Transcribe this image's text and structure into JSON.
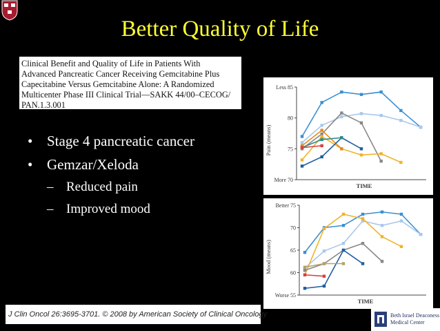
{
  "slide": {
    "title": "Better Quality of Life",
    "citation_lines": [
      "Clinical Benefit and Quality of Life in Patients With",
      "Advanced Pancreatic Cancer Receiving Gemcitabine Plus",
      "Capecitabine Versus Gemcitabine Alone: A Randomized",
      "Multicenter Phase III Clinical Trial—SAKK 44/00–CECOG/",
      "PAN.1.3.001"
    ],
    "bullets": [
      {
        "text": "Stage 4 pancreatic cancer",
        "level": 1
      },
      {
        "text": "Gemzar/Xeloda",
        "level": 1
      },
      {
        "text": "Reduced pain",
        "level": 2
      },
      {
        "text": "Improved mood",
        "level": 2
      }
    ],
    "footer_citation": "J Clin Oncol 26:3695-3701. © 2008 by American Society of Clinical Oncology",
    "logo_text": [
      "Beth Israel Deaconess",
      "Medical Center"
    ],
    "colors": {
      "background": "#000000",
      "title": "#ffff33",
      "text": "#ffffff"
    }
  },
  "chart_data": [
    {
      "type": "line",
      "ylabel": "Pain (means)",
      "xlabel": "TIME",
      "ylim": [
        70,
        85
      ],
      "y_ticks": [
        70,
        75,
        80,
        85
      ],
      "y_tick_labels": [
        "More 70",
        "75",
        "80",
        "Less 85"
      ],
      "series": [
        {
          "color": "#3b8fd0",
          "values": [
            77,
            82.5,
            84.2,
            83.8,
            84.2,
            81.2,
            78.5
          ]
        },
        {
          "color": "#a8c8ec",
          "values": [
            76,
            78.8,
            80.2,
            80.7,
            80.4,
            79.6,
            78.5
          ]
        },
        {
          "color": "#888888",
          "values": [
            75,
            77.4,
            80.8,
            79.2,
            73
          ]
        },
        {
          "color": "#f0b429",
          "values": [
            73.2,
            77,
            75,
            74,
            74.2,
            72.8
          ]
        },
        {
          "color": "#e38a1e",
          "values": [
            75.5,
            78,
            75
          ]
        },
        {
          "color": "#1f5e9e",
          "values": [
            72.2,
            73.7,
            76.8,
            75
          ]
        },
        {
          "color": "#2d8a8a",
          "values": [
            75.2,
            76.5,
            76.8
          ]
        },
        {
          "color": "#d9413d",
          "values": [
            75.2,
            75.5
          ]
        }
      ]
    },
    {
      "type": "line",
      "ylabel": "Mood (means)",
      "xlabel": "TIME",
      "ylim": [
        55,
        75
      ],
      "y_ticks": [
        55,
        60,
        65,
        70,
        75
      ],
      "y_tick_labels": [
        "Worse 55",
        "60",
        "65",
        "70",
        "Better 75"
      ],
      "series": [
        {
          "color": "#3b8fd0",
          "values": [
            64.5,
            70,
            70.5,
            73,
            73.5,
            73,
            68.5
          ]
        },
        {
          "color": "#a8c8ec",
          "values": [
            61,
            64.8,
            66.5,
            71.5,
            70.5,
            71.5,
            68.5
          ]
        },
        {
          "color": "#f0b429",
          "values": [
            59.5,
            69.8,
            73,
            72,
            68,
            65.8
          ]
        },
        {
          "color": "#888888",
          "values": [
            60.5,
            62,
            65,
            66.5,
            62.5
          ]
        },
        {
          "color": "#1f5e9e",
          "values": [
            56.5,
            57,
            65,
            62
          ]
        },
        {
          "color": "#b5a26a",
          "values": [
            61.2,
            62,
            62
          ]
        },
        {
          "color": "#d9413d",
          "values": [
            59.5,
            59.2
          ]
        }
      ]
    }
  ]
}
